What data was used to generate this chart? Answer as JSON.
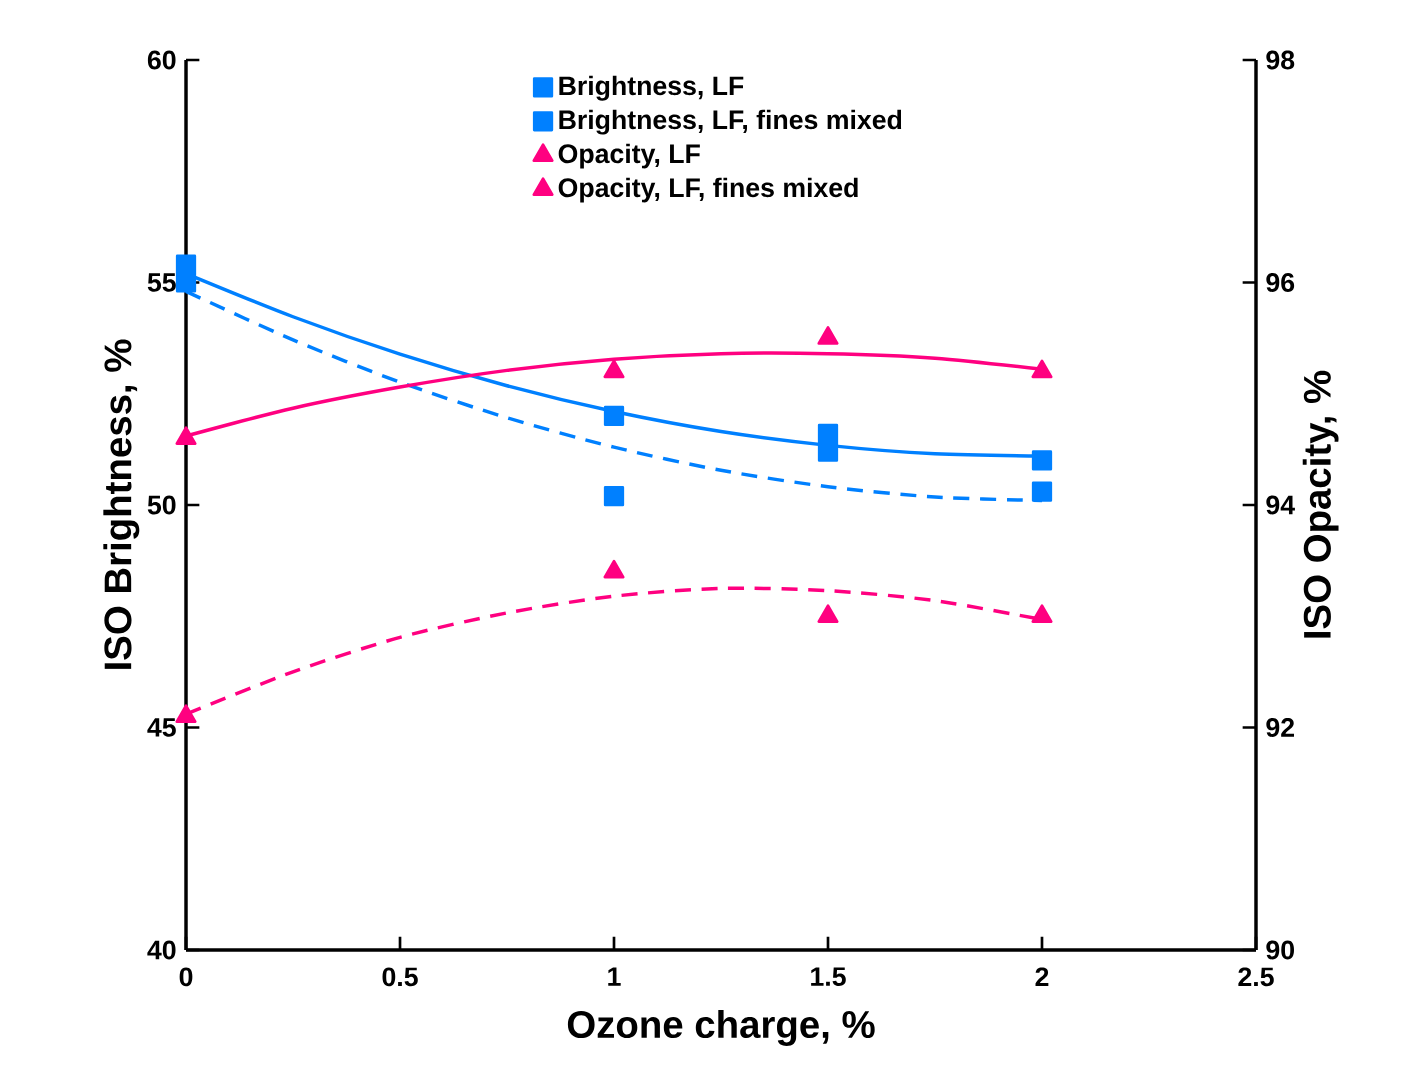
{
  "chart_data": {
    "type": "scatter",
    "xlabel": "Ozone charge, %",
    "ylabel": "ISO Brightness, %",
    "y2label": "ISO Opacity, %",
    "xlim": [
      0,
      2.5
    ],
    "xticks": [
      0,
      0.5,
      1,
      1.5,
      2,
      2.5
    ],
    "ylim": [
      40,
      60
    ],
    "yticks": [
      40,
      45,
      50,
      55,
      60
    ],
    "y2lim": [
      90,
      98
    ],
    "y2ticks": [
      90,
      92,
      94,
      96,
      98
    ],
    "x": [
      0,
      1,
      1.5,
      2
    ],
    "legend": "top",
    "grid": false,
    "series": [
      {
        "name": "Brightness, LF",
        "color": "#0080ff",
        "marker": "square",
        "values": [
          55.0,
          50.2,
          51.2,
          50.3
        ]
      },
      {
        "name": "Brightness, LF, fines mixed",
        "color": "#0080ff",
        "marker": "square",
        "values": [
          55.4,
          52.0,
          51.6,
          51.0
        ]
      },
      {
        "name": "Opacity, LF",
        "color": "#ff0080",
        "marker": "triangle",
        "axis": "y2",
        "values": [
          92.1,
          93.4,
          93.0,
          93.0
        ]
      },
      {
        "name": "Opacity, LF, fines mixed",
        "color": "#ff0080",
        "marker": "triangle",
        "axis": "y2",
        "values": [
          94.6,
          95.2,
          95.5,
          95.2
        ]
      },
      {
        "type": "line",
        "color": "#0080ff",
        "marker": "none",
        "line_style": "dashed",
        "x": [
          0,
          0.25,
          0.5,
          0.75,
          1,
          1.25,
          1.5,
          1.75,
          2
        ],
        "values": [
          54.8,
          53.71,
          52.76,
          51.96,
          51.3,
          50.78,
          50.41,
          50.18,
          50.1
        ]
      },
      {
        "type": "line",
        "color": "#0080ff",
        "marker": "none",
        "line_style": "solid",
        "x": [
          0,
          0.25,
          0.5,
          0.75,
          1,
          1.25,
          1.5,
          1.75,
          2
        ],
        "values": [
          55.2,
          54.23,
          53.39,
          52.68,
          52.1,
          51.65,
          51.34,
          51.15,
          51.1
        ]
      },
      {
        "type": "line",
        "color": "#ff0080",
        "marker": "none",
        "line_style": "dashed",
        "axis": "y2",
        "x": [
          0,
          0.25,
          0.5,
          0.75,
          1,
          1.25,
          1.5,
          1.75,
          2
        ],
        "values": [
          92.12,
          92.5,
          92.81,
          93.03,
          93.18,
          93.25,
          93.23,
          93.14,
          92.97
        ]
      },
      {
        "type": "line",
        "color": "#ff0080",
        "marker": "none",
        "line_style": "solid",
        "axis": "y2",
        "x": [
          0,
          0.25,
          0.5,
          0.75,
          1,
          1.25,
          1.5,
          1.75,
          2
        ],
        "values": [
          94.62,
          94.87,
          95.06,
          95.21,
          95.31,
          95.36,
          95.36,
          95.32,
          95.22
        ]
      }
    ]
  }
}
